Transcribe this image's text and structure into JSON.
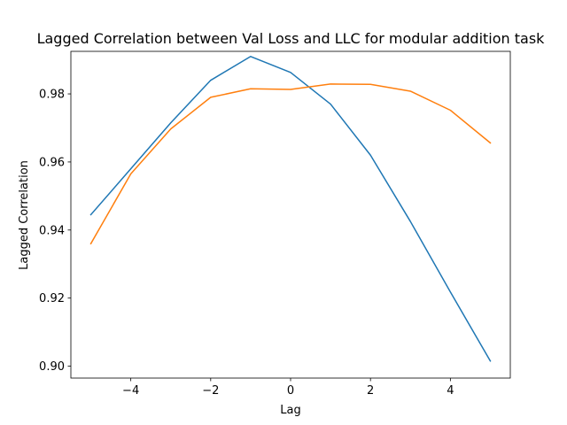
{
  "chart_data": {
    "type": "line",
    "title": "Lagged Correlation between Val Loss and LLC for modular addition task",
    "xlabel": "Lag",
    "ylabel": "Lagged Correlation",
    "xlim": [
      -5.5,
      5.5
    ],
    "ylim": [
      0.8965,
      0.9925
    ],
    "xticks": [
      -4,
      -2,
      0,
      2,
      4
    ],
    "xtick_labels": [
      "−4",
      "−2",
      "0",
      "2",
      "4"
    ],
    "yticks": [
      0.9,
      0.92,
      0.94,
      0.96,
      0.98
    ],
    "ytick_labels": [
      "0.90",
      "0.92",
      "0.94",
      "0.96",
      "0.98"
    ],
    "grid": false,
    "legend": "none",
    "x": [
      -5,
      -4,
      -3,
      -2,
      -1,
      0,
      1,
      2,
      3,
      4,
      5
    ],
    "series": [
      {
        "color": "#1f77b4",
        "values": [
          0.9445,
          0.958,
          0.9715,
          0.984,
          0.991,
          0.9863,
          0.977,
          0.962,
          0.9425,
          0.9218,
          0.9015
        ]
      },
      {
        "color": "#ff7f0e",
        "values": [
          0.936,
          0.9565,
          0.9697,
          0.979,
          0.9815,
          0.9813,
          0.9829,
          0.9828,
          0.9808,
          0.9752,
          0.9656
        ]
      }
    ]
  }
}
